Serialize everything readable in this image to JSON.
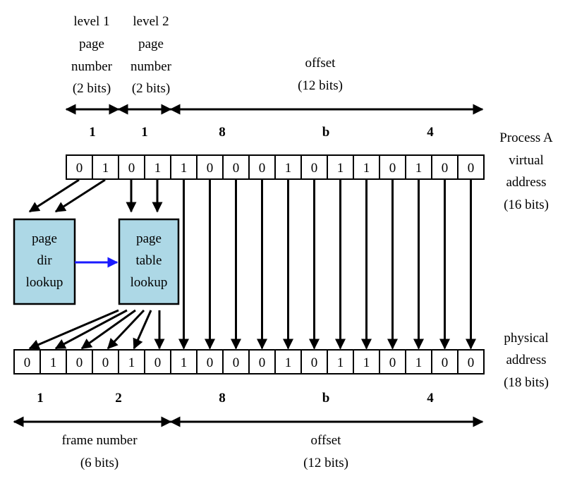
{
  "top_fields": {
    "level1": [
      "level 1",
      "page",
      "number",
      "(2 bits)"
    ],
    "level2": [
      "level 2",
      "page",
      "number",
      "(2 bits)"
    ],
    "offset": [
      "offset",
      "(12 bits)"
    ]
  },
  "virtual": {
    "hex_digits": [
      "1",
      "1",
      "8",
      "b",
      "4"
    ],
    "bits": [
      "0",
      "1",
      "0",
      "1",
      "1",
      "0",
      "0",
      "0",
      "1",
      "0",
      "1",
      "1",
      "0",
      "1",
      "0",
      "0"
    ],
    "label": [
      "Process A",
      "virtual",
      "address",
      "(16 bits)"
    ]
  },
  "boxes": {
    "page_dir": [
      "page",
      "dir",
      "lookup"
    ],
    "page_table": [
      "page",
      "table",
      "lookup"
    ]
  },
  "physical": {
    "bits": [
      "0",
      "1",
      "0",
      "0",
      "1",
      "0",
      "1",
      "0",
      "0",
      "0",
      "1",
      "0",
      "1",
      "1",
      "0",
      "1",
      "0",
      "0"
    ],
    "label": [
      "physical",
      "address",
      "(18 bits)"
    ],
    "hex_digits": [
      "1",
      "2",
      "8",
      "b",
      "4"
    ]
  },
  "bottom_fields": {
    "frame": [
      "frame number",
      "(6 bits)"
    ],
    "offset": [
      "offset",
      "(12 bits)"
    ]
  },
  "colors": {
    "box_fill": "#add8e6",
    "arrow_blue": "#1a1aff"
  }
}
